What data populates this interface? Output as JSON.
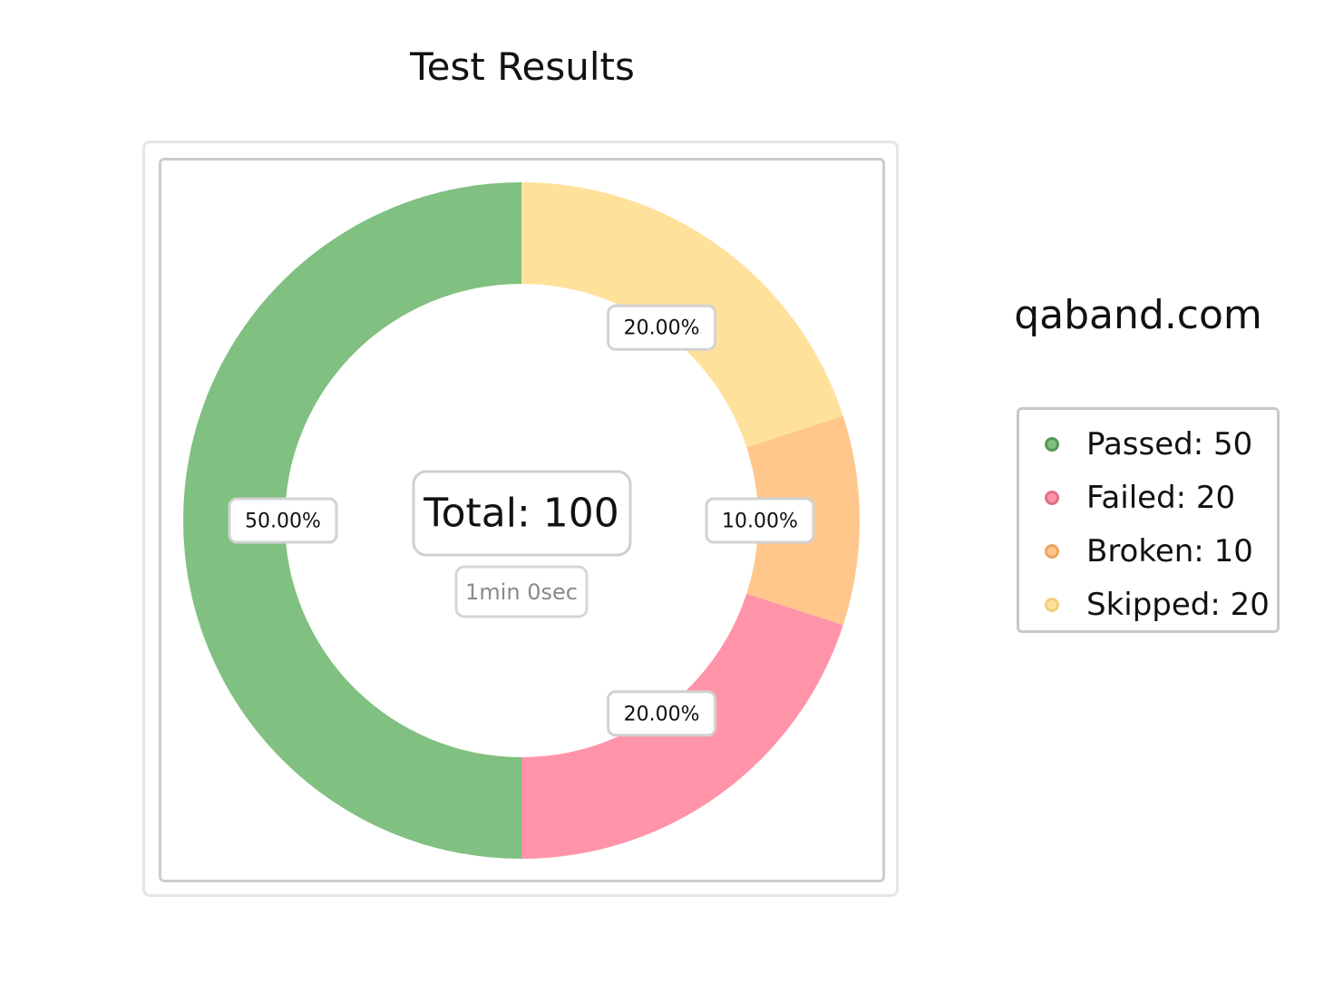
{
  "title": "Test Results",
  "brand": "qaband.com",
  "center": {
    "total_text": "Total: 100",
    "duration_text": "1min 0sec"
  },
  "legend": {
    "items": [
      {
        "label": "Passed: 50",
        "color": "#80c080",
        "marker_border": "#559955"
      },
      {
        "label": "Failed: 20",
        "color": "#ff94a8",
        "marker_border": "#e07085"
      },
      {
        "label": "Broken: 10",
        "color": "#ffc78c",
        "marker_border": "#eea560"
      },
      {
        "label": "Skipped: 20",
        "color": "#ffe19c",
        "marker_border": "#f2cf7a"
      }
    ]
  },
  "chart_data": {
    "type": "pie",
    "title": "Test Results",
    "categories": [
      "Passed",
      "Failed",
      "Broken",
      "Skipped"
    ],
    "values": [
      50,
      20,
      10,
      20
    ],
    "colors": [
      "#80c080",
      "#ff94a8",
      "#ffc78c",
      "#ffe19c"
    ],
    "data_labels": [
      "50.00%",
      "20.00%",
      "10.00%",
      "20.00%"
    ],
    "total": 100,
    "donut": true,
    "legend_position": "right"
  }
}
